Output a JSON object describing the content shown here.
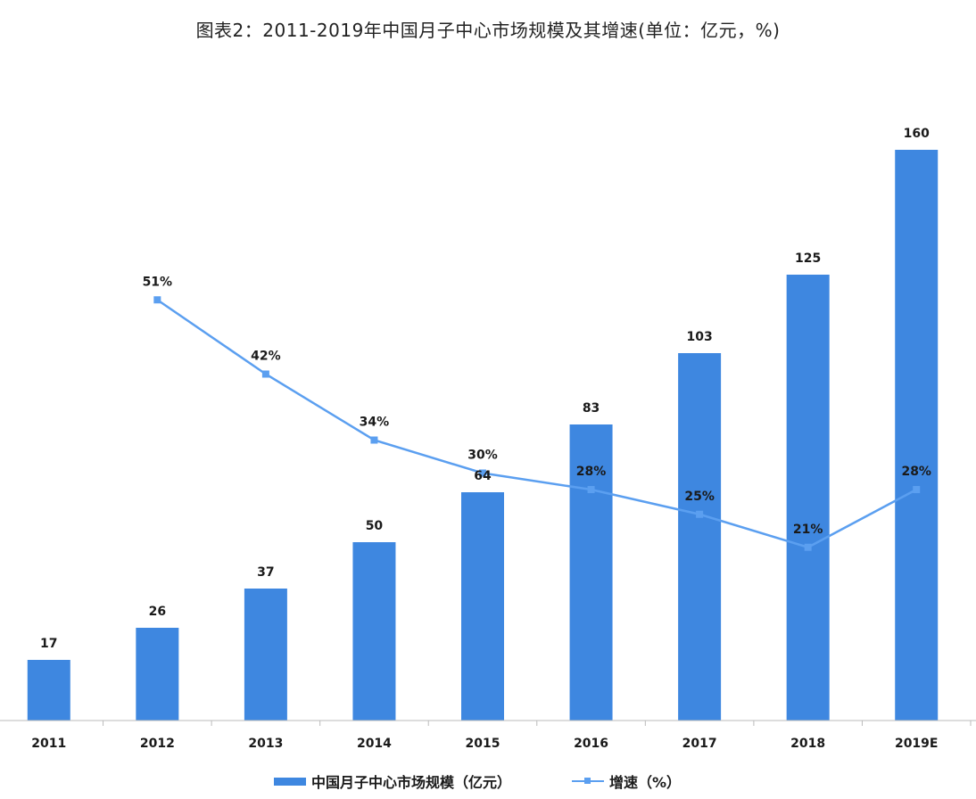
{
  "title": "图表2：2011-2019年中国月子中心市场规模及其增速(单位：亿元，%)",
  "colors": {
    "bar": "#3e87e0",
    "line": "#5b9ff0",
    "axis": "#bbbbbb"
  },
  "chart_data": {
    "type": "bar",
    "categories": [
      "2011",
      "2012",
      "2013",
      "2014",
      "2015",
      "2016",
      "2017",
      "2018",
      "2019E"
    ],
    "series": [
      {
        "name": "中国月子中心市场规模（亿元）",
        "type": "bar",
        "axis": "left",
        "values": [
          17,
          26,
          37,
          50,
          64,
          83,
          103,
          125,
          160
        ],
        "labels": [
          "17",
          "26",
          "37",
          "50",
          "64",
          "83",
          "103",
          "125",
          "160"
        ]
      },
      {
        "name": "增速（%）",
        "type": "line",
        "axis": "right",
        "values": [
          null,
          51,
          42,
          34,
          30,
          28,
          25,
          21,
          28
        ],
        "labels": [
          "",
          "51%",
          "42%",
          "34%",
          "30%",
          "28%",
          "25%",
          "21%",
          "28%"
        ]
      }
    ],
    "ylim_left": [
      0,
      170
    ],
    "ylim_right": [
      0,
      80
    ],
    "grid": false,
    "legend": "bottom"
  }
}
